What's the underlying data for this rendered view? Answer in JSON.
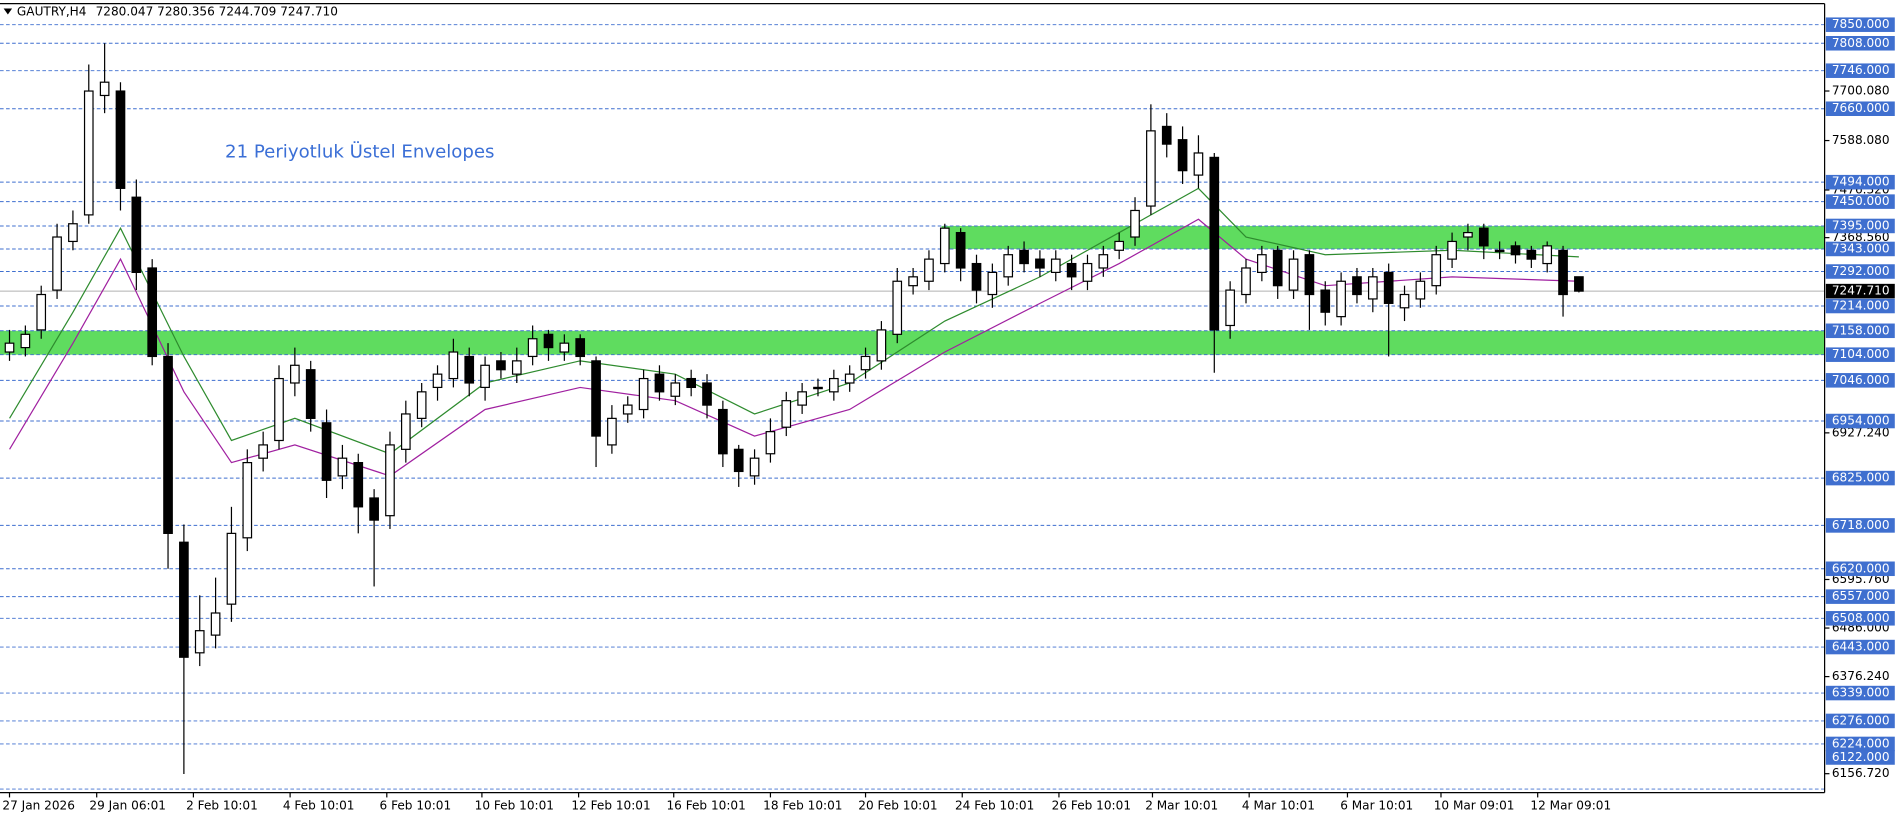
{
  "chart_data": {
    "type": "candlestick",
    "title": "GAUTRY,H4",
    "ohlc_text": "7280.047 7280.356 7244.709 7247.710",
    "annotation": "21 Periyotluk Üstel Envelopes",
    "open": [
      7110,
      7120,
      7160,
      7250,
      7360,
      7420,
      7690,
      7700,
      7460,
      7300,
      7100,
      6680,
      6430,
      6470,
      6540,
      6690,
      6870,
      6910,
      7040,
      7070,
      6950,
      6830,
      6860,
      6780,
      6740,
      6890,
      6960,
      7030,
      7050,
      7100,
      7030,
      7090,
      7060,
      7100,
      7150,
      7110,
      7140,
      7090,
      6900,
      6970,
      6980,
      7060,
      7010,
      7050,
      7040,
      6980,
      6890,
      6830,
      6880,
      6940,
      6990,
      7030,
      7020,
      7040,
      7070,
      7090,
      7150,
      7260,
      7270,
      7310,
      7380,
      7310,
      7240,
      7280,
      7340,
      7320,
      7290,
      7310,
      7270,
      7300,
      7340,
      7370,
      7440,
      7620,
      7590,
      7510,
      7550,
      7170,
      7240,
      7290,
      7340,
      7250,
      7330,
      7250,
      7190,
      7280,
      7230,
      7290,
      7210,
      7230,
      7260,
      7320,
      7370,
      7390,
      7340,
      7350,
      7340,
      7310,
      7340,
      7280.047
    ],
    "high": [
      7160,
      7170,
      7260,
      7400,
      7430,
      7760,
      7808,
      7720,
      7500,
      7320,
      7130,
      6720,
      6560,
      6600,
      6760,
      6890,
      6930,
      7080,
      7120,
      7090,
      6980,
      6900,
      6880,
      6800,
      6930,
      7000,
      7040,
      7080,
      7140,
      7120,
      7100,
      7110,
      7120,
      7170,
      7160,
      7150,
      7150,
      7100,
      6990,
      7010,
      7070,
      7080,
      7060,
      7070,
      7060,
      7000,
      6900,
      6890,
      6960,
      7020,
      7040,
      7050,
      7070,
      7080,
      7120,
      7180,
      7300,
      7300,
      7340,
      7400,
      7390,
      7330,
      7310,
      7350,
      7360,
      7340,
      7340,
      7330,
      7330,
      7350,
      7380,
      7460,
      7670,
      7650,
      7620,
      7600,
      7560,
      7270,
      7320,
      7350,
      7350,
      7340,
      7340,
      7270,
      7290,
      7300,
      7300,
      7310,
      7260,
      7290,
      7350,
      7380,
      7400,
      7400,
      7360,
      7360,
      7350,
      7360,
      7350,
      7280.356
    ],
    "low": [
      7090,
      7100,
      7140,
      7230,
      7340,
      7400,
      7650,
      7430,
      7250,
      7080,
      6620,
      6156,
      6400,
      6440,
      6500,
      6660,
      6840,
      6890,
      7010,
      6930,
      6780,
      6800,
      6700,
      6580,
      6710,
      6860,
      6940,
      7000,
      7030,
      7010,
      7000,
      7050,
      7040,
      7080,
      7090,
      7090,
      7080,
      6850,
      6880,
      6950,
      6960,
      7000,
      6990,
      7010,
      6960,
      6850,
      6805,
      6810,
      6860,
      6920,
      6970,
      7010,
      7000,
      7020,
      7050,
      7070,
      7130,
      7240,
      7250,
      7290,
      7270,
      7220,
      7210,
      7260,
      7290,
      7280,
      7270,
      7250,
      7250,
      7280,
      7320,
      7350,
      7420,
      7550,
      7490,
      7480,
      7063,
      7140,
      7220,
      7270,
      7230,
      7230,
      7160,
      7170,
      7170,
      7220,
      7200,
      7100,
      7180,
      7210,
      7240,
      7300,
      7340,
      7320,
      7320,
      7310,
      7300,
      7290,
      7190,
      7244.709
    ],
    "close": [
      7130,
      7150,
      7240,
      7370,
      7400,
      7700,
      7720,
      7480,
      7290,
      7100,
      6700,
      6420,
      6480,
      6520,
      6700,
      6860,
      6900,
      7050,
      7080,
      6960,
      6820,
      6870,
      6760,
      6730,
      6900,
      6970,
      7020,
      7060,
      7110,
      7040,
      7080,
      7070,
      7090,
      7140,
      7120,
      7130,
      7100,
      6920,
      6960,
      6990,
      7050,
      7020,
      7040,
      7030,
      6990,
      6880,
      6840,
      6870,
      6930,
      7000,
      7020,
      7030,
      7050,
      7060,
      7100,
      7160,
      7270,
      7280,
      7320,
      7390,
      7300,
      7250,
      7290,
      7330,
      7310,
      7300,
      7320,
      7280,
      7310,
      7330,
      7360,
      7430,
      7610,
      7580,
      7520,
      7560,
      7160,
      7250,
      7300,
      7330,
      7260,
      7320,
      7240,
      7200,
      7270,
      7240,
      7280,
      7220,
      7240,
      7270,
      7330,
      7360,
      7380,
      7350,
      7340,
      7330,
      7320,
      7350,
      7240,
      7247.71
    ],
    "up_color": "#ffffff",
    "down_color": "#000000",
    "envelopes": [
      {
        "color": "#2e8b2e",
        "x": [
          0,
          4,
          7,
          11,
          14,
          18,
          24,
          30,
          36,
          42,
          47,
          53,
          59,
          65,
          70,
          75,
          78,
          83,
          91,
          99
        ],
        "values": [
          6960,
          7200,
          7390,
          7100,
          6910,
          6960,
          6880,
          7040,
          7090,
          7060,
          6970,
          7040,
          7180,
          7280,
          7380,
          7480,
          7370,
          7330,
          7340,
          7325
        ]
      },
      {
        "color": "#a020a0",
        "x": [
          0,
          4,
          7,
          11,
          14,
          18,
          24,
          30,
          36,
          42,
          47,
          53,
          59,
          65,
          70,
          75,
          78,
          83,
          91,
          99
        ],
        "values": [
          6890,
          7130,
          7320,
          7020,
          6860,
          6900,
          6830,
          6980,
          7030,
          7000,
          6920,
          6980,
          7110,
          7220,
          7310,
          7410,
          7320,
          7260,
          7280,
          7270
        ]
      }
    ],
    "zones": [
      {
        "from": 7343,
        "to": 7395,
        "start": 58.8
      },
      {
        "from": 7104,
        "to": 7158,
        "start": -0.6
      }
    ],
    "zone_color": "#5fdc5f",
    "level_color": "#3f6fcf",
    "xlim": [
      -0.6,
      114.5
    ],
    "ylim": [
      6114,
      7873
    ],
    "yticks": [
      {
        "value": 7700.08,
        "label": "7700.080"
      },
      {
        "value": 7588.08,
        "label": "7588.080"
      },
      {
        "value": 7476.32,
        "label": "7476.320"
      },
      {
        "value": 7368.56,
        "label": "7368.560"
      },
      {
        "value": 6927.24,
        "label": "6927.240"
      },
      {
        "value": 6595.76,
        "label": "6595.760"
      },
      {
        "value": 6486,
        "label": "6486.000"
      },
      {
        "value": 6376.24,
        "label": "6376.240"
      },
      {
        "value": 6156.72,
        "label": "6156.720"
      }
    ],
    "levels": [
      {
        "value": 7850,
        "label": "7850.000"
      },
      {
        "value": 7808,
        "label": "7808.000"
      },
      {
        "value": 7746,
        "label": "7746.000"
      },
      {
        "value": 7660,
        "label": "7660.000"
      },
      {
        "value": 7494,
        "label": "7494.000"
      },
      {
        "value": 7450,
        "label": "7450.000"
      },
      {
        "value": 7395,
        "label": "7395.000"
      },
      {
        "value": 7343,
        "label": "7343.000"
      },
      {
        "value": 7292,
        "label": "7292.000"
      },
      {
        "value": 7214,
        "label": "7214.000"
      },
      {
        "value": 7158,
        "label": "7158.000"
      },
      {
        "value": 7104,
        "label": "7104.000"
      },
      {
        "value": 7046,
        "label": "7046.000"
      },
      {
        "value": 6954,
        "label": "6954.000"
      },
      {
        "value": 6825,
        "label": "6825.000"
      },
      {
        "value": 6718,
        "label": "6718.000"
      },
      {
        "value": 6620,
        "label": "6620.000"
      },
      {
        "value": 6557,
        "label": "6557.000"
      },
      {
        "value": 6508,
        "label": "6508.000"
      },
      {
        "value": 6443,
        "label": "6443.000"
      },
      {
        "value": 6339,
        "label": "6339.000"
      },
      {
        "value": 6276,
        "label": "6276.000"
      },
      {
        "value": 6224,
        "label": "6224.000"
      },
      {
        "value": 6122,
        "label": "6122.000"
      }
    ],
    "last_price": {
      "value": 7247.71,
      "label": "7247.710"
    },
    "xticks": [
      {
        "value": 0,
        "label": "27 Jan 2026"
      },
      {
        "value": 5.5,
        "label": "29 Jan 06:01"
      },
      {
        "value": 11.6,
        "label": "2 Feb 10:01"
      },
      {
        "value": 17.7,
        "label": "4 Feb 10:01"
      },
      {
        "value": 23.8,
        "label": "6 Feb 10:01"
      },
      {
        "value": 29.8,
        "label": "10 Feb 10:01"
      },
      {
        "value": 35.9,
        "label": "12 Feb 10:01"
      },
      {
        "value": 41.9,
        "label": "16 Feb 10:01"
      },
      {
        "value": 48,
        "label": "18 Feb 10:01"
      },
      {
        "value": 54,
        "label": "20 Feb 10:01"
      },
      {
        "value": 60.1,
        "label": "24 Feb 10:01"
      },
      {
        "value": 66.2,
        "label": "26 Feb 10:01"
      },
      {
        "value": 72.1,
        "label": "2 Mar 10:01"
      },
      {
        "value": 78.2,
        "label": "4 Mar 10:01"
      },
      {
        "value": 84.4,
        "label": "6 Mar 10:01"
      },
      {
        "value": 90.3,
        "label": "10 Mar 09:01"
      },
      {
        "value": 96.4,
        "label": "12 Mar 09:01"
      }
    ],
    "grid": false
  }
}
